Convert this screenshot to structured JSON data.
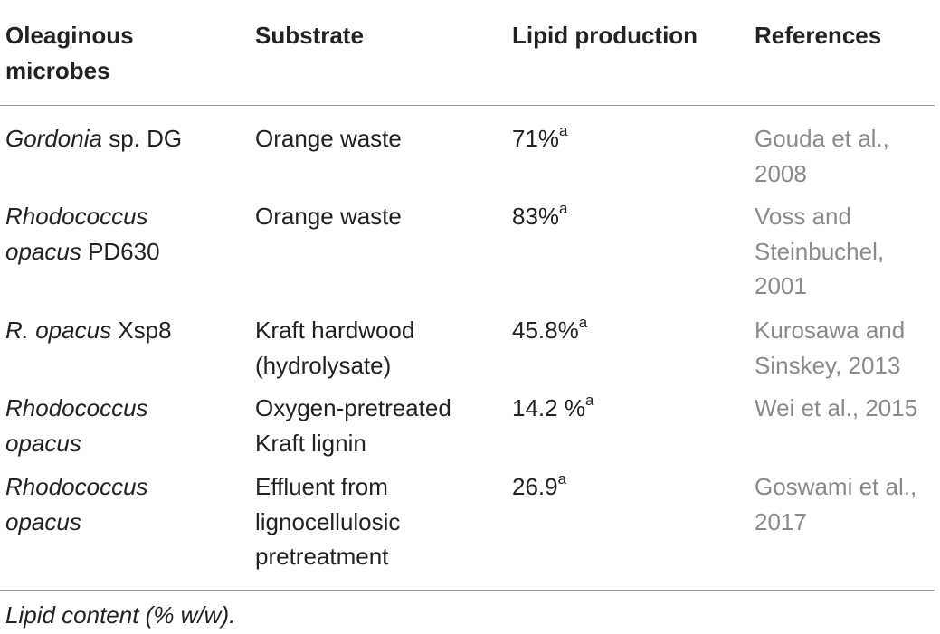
{
  "table": {
    "headers": {
      "microbes": "Oleaginous\nmicrobes",
      "substrate": "Substrate",
      "lipid": "Lipid production",
      "references": "References"
    },
    "rows": [
      {
        "microbe_italic": "Gordonia",
        "microbe_plain": " sp. DG",
        "substrate": "Orange waste",
        "lipid_value": "71%",
        "lipid_sup": "a",
        "reference": "Gouda et al.,\n2008"
      },
      {
        "microbe_italic": "Rhodococcus\nopacus",
        "microbe_plain": " PD630",
        "substrate": "Orange waste",
        "lipid_value": "83%",
        "lipid_sup": "a",
        "reference": "Voss and\nSteinbuchel,\n2001"
      },
      {
        "microbe_italic": "R. opacus",
        "microbe_plain": " Xsp8",
        "substrate": "Kraft hardwood\n(hydrolysate)",
        "lipid_value": "45.8%",
        "lipid_sup": "a",
        "reference": "Kurosawa and\nSinskey, 2013"
      },
      {
        "microbe_italic": "Rhodococcus\nopacus",
        "microbe_plain": "",
        "substrate": "Oxygen-pretreated\nKraft lignin",
        "lipid_value": "14.2 %",
        "lipid_sup": "a",
        "reference": "Wei et al., 2015"
      },
      {
        "microbe_italic": "Rhodococcus\nopacus",
        "microbe_plain": "",
        "substrate": "Effluent from\nlignocellulosic\npretreatment",
        "lipid_value": "26.9",
        "lipid_sup": "a",
        "reference": "Goswami et al.,\n2017"
      }
    ],
    "footnote": "Lipid content (% w/w)."
  }
}
